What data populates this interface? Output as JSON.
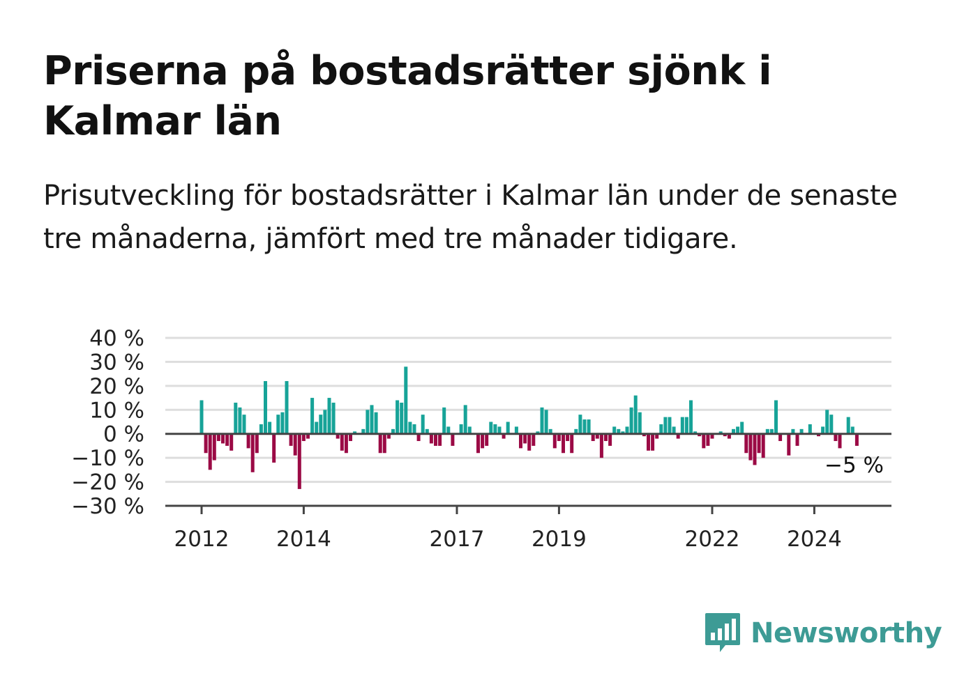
{
  "title": "Priserna på bostadsrätter sjönk i Kalmar län",
  "subtitle": "Prisutveckling för bostadsrätter i Kalmar län under de senaste tre månaderna, jämfört med tre månader tidigare.",
  "brand": {
    "name": "Newsworthy",
    "icon": "newsworthy-logo-icon",
    "color": "#3d9b95"
  },
  "colors": {
    "positive": "#17a398",
    "negative": "#9b0a45",
    "grid": "#dddddd",
    "axis": "#444444"
  },
  "chart_data": {
    "type": "bar",
    "ylim": [
      -30,
      40
    ],
    "y_ticks": [
      40,
      30,
      20,
      10,
      0,
      -10,
      -20,
      -30
    ],
    "y_tick_labels": [
      "40 %",
      "30 %",
      "20 %",
      "10 %",
      "0 %",
      "−10 %",
      "−20 %",
      "−30 %"
    ],
    "x_ticks": [
      {
        "label": "2012",
        "index": 0
      },
      {
        "label": "2014",
        "index": 24
      },
      {
        "label": "2017",
        "index": 60
      },
      {
        "label": "2019",
        "index": 84
      },
      {
        "label": "2022",
        "index": 120
      },
      {
        "label": "2024",
        "index": 144
      }
    ],
    "grid": true,
    "end_label": "−5 %",
    "start": "2012-01",
    "frequency": "monthly",
    "values": [
      14,
      -8,
      -15,
      -11,
      -3,
      -4,
      -5,
      -7,
      13,
      11,
      8,
      -6,
      -16,
      -8,
      4,
      22,
      5,
      -12,
      8,
      9,
      22,
      -5,
      -9,
      -23,
      -3,
      -2,
      15,
      5,
      8,
      10,
      15,
      13,
      -2,
      -7,
      -8,
      -3,
      1,
      0,
      2,
      10,
      12,
      9,
      -8,
      -8,
      -2,
      2,
      14,
      13,
      28,
      5,
      4,
      -3,
      8,
      2,
      -4,
      -5,
      -5,
      11,
      3,
      -5,
      0,
      4,
      12,
      3,
      0,
      -8,
      -6,
      -5,
      5,
      4,
      3,
      -2,
      5,
      0,
      3,
      -6,
      -4,
      -7,
      -5,
      1,
      11,
      10,
      2,
      -6,
      -3,
      -8,
      -3,
      -8,
      2,
      8,
      6,
      6,
      -3,
      -2,
      -10,
      -3,
      -5,
      3,
      2,
      1,
      3,
      11,
      16,
      9,
      -1,
      -7,
      -7,
      -2,
      4,
      7,
      7,
      3,
      -2,
      7,
      7,
      14,
      1,
      -1,
      -6,
      -5,
      -2,
      0,
      1,
      -1,
      -2,
      2,
      3,
      5,
      -8,
      -11,
      -13,
      -8,
      -10,
      2,
      2,
      14,
      -3,
      0,
      -9,
      2,
      -5,
      2,
      0,
      4,
      0,
      -1,
      3,
      10,
      8,
      -3,
      -6,
      0,
      7,
      3,
      -5
    ]
  }
}
